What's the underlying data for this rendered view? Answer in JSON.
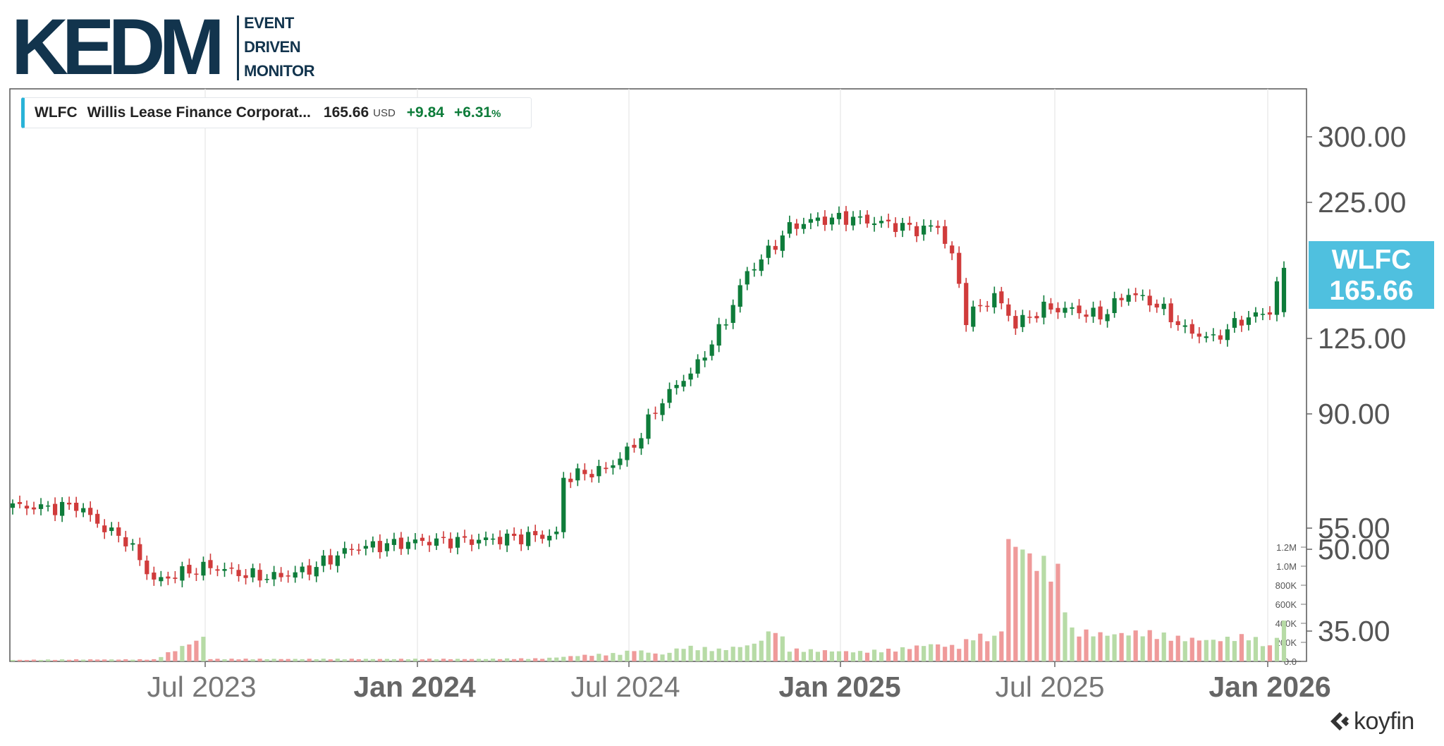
{
  "logo": {
    "main": "KEDM",
    "line1": "EVENT",
    "line2": "DRIVEN",
    "line3": "MONITOR"
  },
  "legend": {
    "symbol": "WLFC",
    "name": "Willis Lease Finance Corporat...",
    "last": "165.66",
    "currency": "USD",
    "change": "+9.84",
    "change_pct": "+6.31",
    "pct_sign": "%"
  },
  "price_tag": {
    "ticker": "WLFC",
    "price": "165.66"
  },
  "watermark": "koyfin",
  "colors": {
    "up": "#0e7c3a",
    "down": "#d03b3b",
    "vol_up": "#b7dba6",
    "vol_down": "#ef9a9a",
    "tag": "#4fc0df",
    "logo": "#12344d"
  },
  "chart_data": {
    "type": "candlestick",
    "series_name": "WLFC",
    "interval": "weekly",
    "y_scale": "log",
    "y_ticks": [
      "300.00",
      "225.00",
      "125.00",
      "90.00",
      "55.00",
      "50.00",
      "35.00"
    ],
    "x_ticks": [
      {
        "label": "Jul 2023",
        "bold": false
      },
      {
        "label": "Jan 2024",
        "bold": true
      },
      {
        "label": "Jul 2024",
        "bold": false
      },
      {
        "label": "Jan 2025",
        "bold": true
      },
      {
        "label": "Jul 2025",
        "bold": false
      },
      {
        "label": "Jan 2026",
        "bold": true
      }
    ],
    "volume_ticks": [
      "1.2M",
      "1.0M",
      "800K",
      "600K",
      "400K",
      "200K",
      "0.0"
    ],
    "last_price": 165.66,
    "close_anchors": [
      [
        0,
        56.3
      ],
      [
        6,
        55.8
      ],
      [
        9,
        56.5
      ],
      [
        13,
        50.8
      ],
      [
        16,
        48.3
      ],
      [
        20,
        40.0
      ],
      [
        24,
        41.6
      ],
      [
        28,
        42.8
      ],
      [
        33,
        41.2
      ],
      [
        37,
        40.8
      ],
      [
        42,
        42.2
      ],
      [
        48,
        46.5
      ],
      [
        58,
        48.0
      ],
      [
        66,
        48.2
      ],
      [
        75,
        49.2
      ],
      [
        77,
        49.4
      ],
      [
        78,
        64.0
      ],
      [
        84,
        66.5
      ],
      [
        88,
        74.0
      ],
      [
        92,
        91.0
      ],
      [
        97,
        106.5
      ],
      [
        101,
        130.5
      ],
      [
        104,
        162.0
      ],
      [
        107,
        178.0
      ],
      [
        110,
        199.0
      ],
      [
        113,
        205.0
      ],
      [
        118,
        208.0
      ],
      [
        121,
        205.0
      ],
      [
        125,
        201.0
      ],
      [
        128,
        197.0
      ],
      [
        131,
        200.0
      ],
      [
        133,
        174.0
      ],
      [
        135,
        132.0
      ],
      [
        139,
        146.0
      ],
      [
        142,
        128.0
      ],
      [
        146,
        138.0
      ],
      [
        150,
        137.0
      ],
      [
        154,
        133.0
      ],
      [
        158,
        148.0
      ],
      [
        162,
        140.0
      ],
      [
        166,
        125.0
      ],
      [
        170,
        120.0
      ],
      [
        174,
        131.0
      ],
      [
        178,
        136.0
      ],
      [
        179,
        155.8
      ],
      [
        180,
        165.66
      ]
    ],
    "volume_anchors_k": [
      [
        0,
        15
      ],
      [
        10,
        20
      ],
      [
        20,
        20
      ],
      [
        27,
        250
      ],
      [
        28,
        25
      ],
      [
        35,
        25
      ],
      [
        45,
        25
      ],
      [
        55,
        25
      ],
      [
        65,
        25
      ],
      [
        75,
        30
      ],
      [
        80,
        60
      ],
      [
        86,
        80
      ],
      [
        88,
        120
      ],
      [
        92,
        70
      ],
      [
        95,
        150
      ],
      [
        100,
        120
      ],
      [
        105,
        180
      ],
      [
        108,
        340
      ],
      [
        110,
        120
      ],
      [
        120,
        100
      ],
      [
        125,
        120
      ],
      [
        130,
        180
      ],
      [
        134,
        150
      ],
      [
        136,
        260
      ],
      [
        139,
        240
      ],
      [
        140,
        350
      ],
      [
        141,
        1200
      ],
      [
        142,
        1250
      ],
      [
        145,
        1020
      ],
      [
        146,
        1010
      ],
      [
        148,
        900
      ],
      [
        150,
        310
      ],
      [
        155,
        280
      ],
      [
        160,
        300
      ],
      [
        165,
        240
      ],
      [
        170,
        220
      ],
      [
        175,
        260
      ],
      [
        178,
        150
      ],
      [
        180,
        400
      ]
    ]
  }
}
